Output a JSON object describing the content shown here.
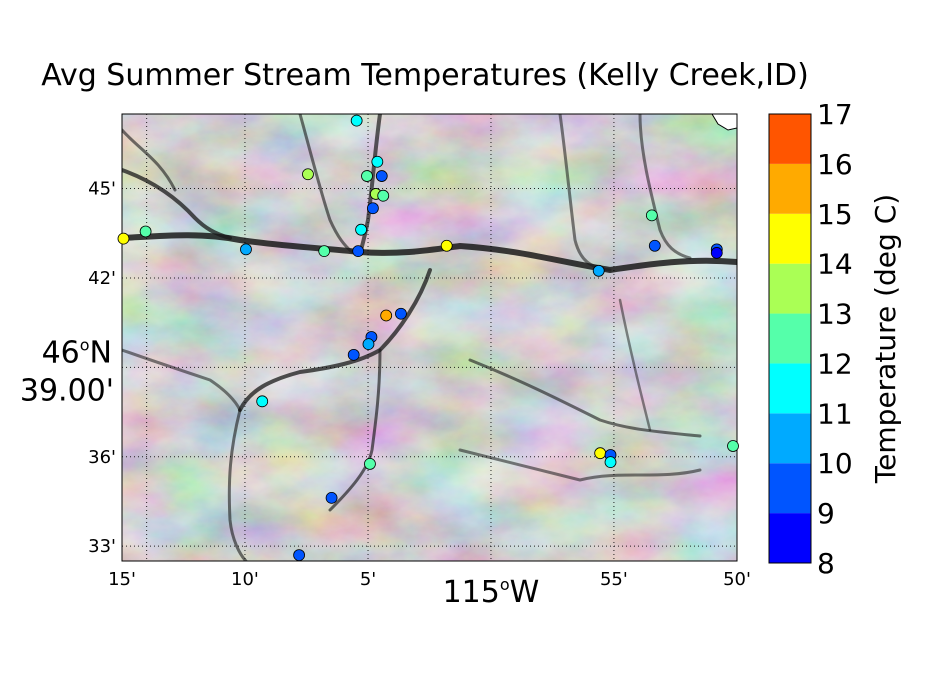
{
  "title": "Avg Summer Stream Temperatures (Kelly Creek,ID)",
  "map": {
    "lon_range": [
      -115.25,
      -114.8333
    ],
    "lat_range": [
      46.5417,
      46.7917
    ],
    "x_tick_labels": [
      {
        "lon": -115.25,
        "label": "15'"
      },
      {
        "lon": -115.1667,
        "label": "10'"
      },
      {
        "lon": -115.0833,
        "label": "5'"
      },
      {
        "lon": -114.9167,
        "label": "55'"
      },
      {
        "lon": -114.8333,
        "label": "50'"
      }
    ],
    "x_main_label": {
      "lon": -115.0,
      "label": "115",
      "suffix": "W"
    },
    "y_tick_labels": [
      {
        "lat": 46.75,
        "label": "45'"
      },
      {
        "lat": 46.7,
        "label": "42'"
      },
      {
        "lat": 46.6,
        "label": "36'"
      },
      {
        "lat": 46.55,
        "label": "33'"
      }
    ],
    "y_main_label": {
      "lat": 46.65,
      "label1": "46",
      "label1_suffix": "N",
      "label2": "39.00'"
    },
    "grid": true,
    "background": "grayscale shaded relief (dark valleys, light ridges)"
  },
  "colorbar": {
    "label": "Temperature (deg C)",
    "min": 8,
    "max": 17,
    "ticks": [
      "8",
      "9",
      "10",
      "11",
      "12",
      "13",
      "14",
      "15",
      "16",
      "17"
    ],
    "colors": [
      "#0000ff",
      "#0055ff",
      "#00aaff",
      "#00ffff",
      "#55ffaa",
      "#aaff55",
      "#ffff00",
      "#ffaa00",
      "#ff5500"
    ]
  },
  "chart_data": {
    "type": "scatter",
    "title": "Avg Summer Stream Temperatures (Kelly Creek,ID)",
    "xlabel": "115°W",
    "ylabel": "46°N 39.00'",
    "color_label": "Temperature (deg C)",
    "clim": [
      8,
      17
    ],
    "points": [
      {
        "lon": -115.091,
        "lat": 46.788,
        "temp": 11.5
      },
      {
        "lon": -115.077,
        "lat": 46.765,
        "temp": 11.2
      },
      {
        "lon": -115.124,
        "lat": 46.758,
        "temp": 13.6
      },
      {
        "lon": -115.084,
        "lat": 46.757,
        "temp": 12.9
      },
      {
        "lon": -115.074,
        "lat": 46.757,
        "temp": 9.4
      },
      {
        "lon": -115.078,
        "lat": 46.747,
        "temp": 13.4
      },
      {
        "lon": -115.073,
        "lat": 46.746,
        "temp": 12.8
      },
      {
        "lon": -115.08,
        "lat": 46.739,
        "temp": 9.8
      },
      {
        "lon": -115.088,
        "lat": 46.727,
        "temp": 11.0
      },
      {
        "lon": -115.234,
        "lat": 46.726,
        "temp": 12.6
      },
      {
        "lon": -115.249,
        "lat": 46.722,
        "temp": 14.4
      },
      {
        "lon": -115.166,
        "lat": 46.716,
        "temp": 10.3
      },
      {
        "lon": -115.113,
        "lat": 46.715,
        "temp": 12.6
      },
      {
        "lon": -115.09,
        "lat": 46.715,
        "temp": 9.5
      },
      {
        "lon": -115.03,
        "lat": 46.718,
        "temp": 14.7
      },
      {
        "lon": -114.891,
        "lat": 46.735,
        "temp": 12.6
      },
      {
        "lon": -114.889,
        "lat": 46.718,
        "temp": 9.7
      },
      {
        "lon": -114.847,
        "lat": 46.716,
        "temp": 9.0
      },
      {
        "lon": -114.847,
        "lat": 46.714,
        "temp": 8.8
      },
      {
        "lon": -114.927,
        "lat": 46.704,
        "temp": 10.3
      },
      {
        "lon": -115.061,
        "lat": 46.68,
        "temp": 9.6
      },
      {
        "lon": -115.071,
        "lat": 46.679,
        "temp": 15.4
      },
      {
        "lon": -115.081,
        "lat": 46.667,
        "temp": 9.8
      },
      {
        "lon": -115.083,
        "lat": 46.663,
        "temp": 10.6
      },
      {
        "lon": -115.093,
        "lat": 46.657,
        "temp": 9.6
      },
      {
        "lon": -115.155,
        "lat": 46.631,
        "temp": 11.7
      },
      {
        "lon": -115.082,
        "lat": 46.596,
        "temp": 12.3
      },
      {
        "lon": -114.926,
        "lat": 46.602,
        "temp": 14.6
      },
      {
        "lon": -114.919,
        "lat": 46.601,
        "temp": 9.7
      },
      {
        "lon": -114.919,
        "lat": 46.597,
        "temp": 11.3
      },
      {
        "lon": -114.836,
        "lat": 46.606,
        "temp": 12.5
      },
      {
        "lon": -115.108,
        "lat": 46.577,
        "temp": 9.5
      },
      {
        "lon": -115.13,
        "lat": 46.545,
        "temp": 9.6
      }
    ]
  }
}
